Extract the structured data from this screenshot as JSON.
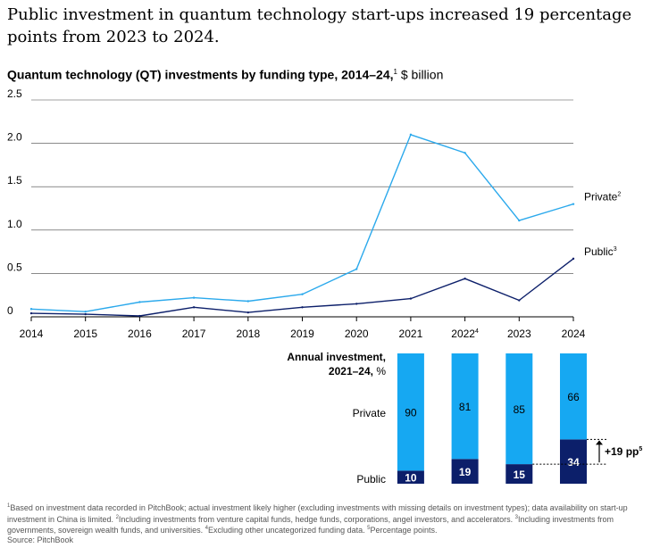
{
  "headline": "Public investment in quantum technology start-ups increased 19 percentage points from 2023 to 2024.",
  "subtitle": {
    "main": "Quantum technology (QT) investments by funding type, 2014–24,",
    "sup": "1",
    "unit": " $ billion"
  },
  "colors": {
    "private": "#2ba9ec",
    "private_bar": "#16a8f2",
    "public": "#0c1f6a",
    "grid": "#444444",
    "axis": "#000000"
  },
  "chart_data": [
    {
      "type": "line",
      "title": "Quantum technology (QT) investments by funding type, 2014–24",
      "ylabel": "$ billion",
      "xlabel": "",
      "ylim": [
        0,
        2.5
      ],
      "y_ticks": [
        {
          "value": 0,
          "label": "0"
        },
        {
          "value": 0.5,
          "label": "0.5"
        },
        {
          "value": 1.0,
          "label": "1.0"
        },
        {
          "value": 1.5,
          "label": "1.5"
        },
        {
          "value": 2.0,
          "label": "2.0"
        },
        {
          "value": 2.5,
          "label": "2.5"
        }
      ],
      "x": [
        "2014",
        "2015",
        "2016",
        "2017",
        "2018",
        "2019",
        "2020",
        "2021",
        "2022",
        "2023",
        "2024"
      ],
      "x_tick_sups": [
        "",
        "",
        "",
        "",
        "",
        "",
        "",
        "",
        "4",
        "",
        ""
      ],
      "series": [
        {
          "key": "private",
          "name": "Private",
          "sup": "2",
          "values": [
            0.09,
            0.06,
            0.17,
            0.22,
            0.18,
            0.26,
            0.55,
            2.1,
            1.89,
            1.11,
            1.3
          ]
        },
        {
          "key": "public",
          "name": "Public",
          "sup": "3",
          "values": [
            0.04,
            0.03,
            0.01,
            0.11,
            0.05,
            0.11,
            0.15,
            0.21,
            0.44,
            0.19,
            0.67
          ]
        }
      ]
    },
    {
      "type": "bar",
      "title_line1": "Annual investment,",
      "title_line2": "2021–24, %",
      "categories": [
        "2021",
        "2022",
        "2023",
        "2024"
      ],
      "series": [
        {
          "key": "public",
          "name": "Public",
          "values": [
            10,
            19,
            15,
            34
          ]
        },
        {
          "key": "private",
          "name": "Private",
          "values": [
            90,
            81,
            85,
            66
          ]
        }
      ],
      "annotation": {
        "label": "+19 pp",
        "sup": "5",
        "from_category": "2023",
        "to_category": "2024"
      }
    }
  ],
  "footnotes": [
    {
      "sup": "1",
      "text": "Based on investment data recorded in PitchBook; actual investment likely higher (excluding investments with missing details on investment types); data availability on start-up investment in China is limited. "
    },
    {
      "sup": "2",
      "text": "Including investments from venture capital funds, hedge funds, corporations, angel investors, and accelerators. "
    },
    {
      "sup": "3",
      "text": "Including investments from governments, sovereign wealth funds, and universities. "
    },
    {
      "sup": "4",
      "text": "Excluding other uncategorized funding data. "
    },
    {
      "sup": "5",
      "text": "Percentage points."
    }
  ],
  "source": "Source: PitchBook"
}
